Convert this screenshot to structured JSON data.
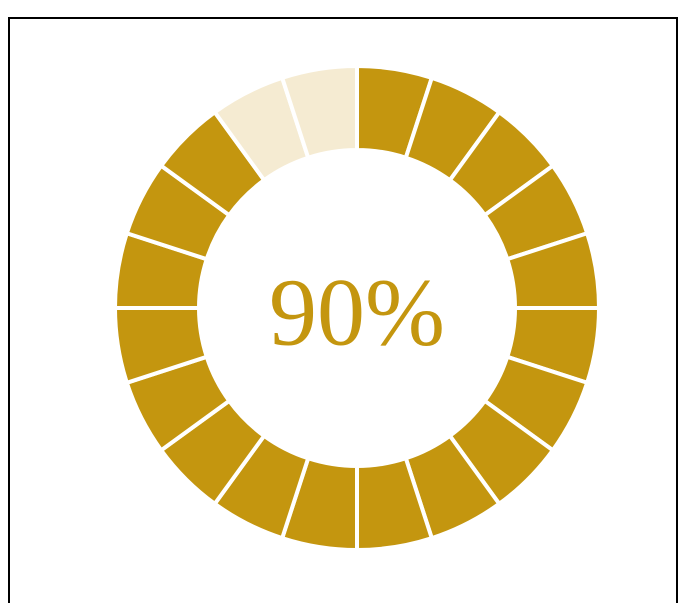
{
  "chart_data": {
    "type": "gauge",
    "value": 90,
    "value_labels": "90%",
    "ylim": [
      0,
      100
    ],
    "segments": 20,
    "color": "#c4960f",
    "track_color": "#f5ebd2"
  }
}
